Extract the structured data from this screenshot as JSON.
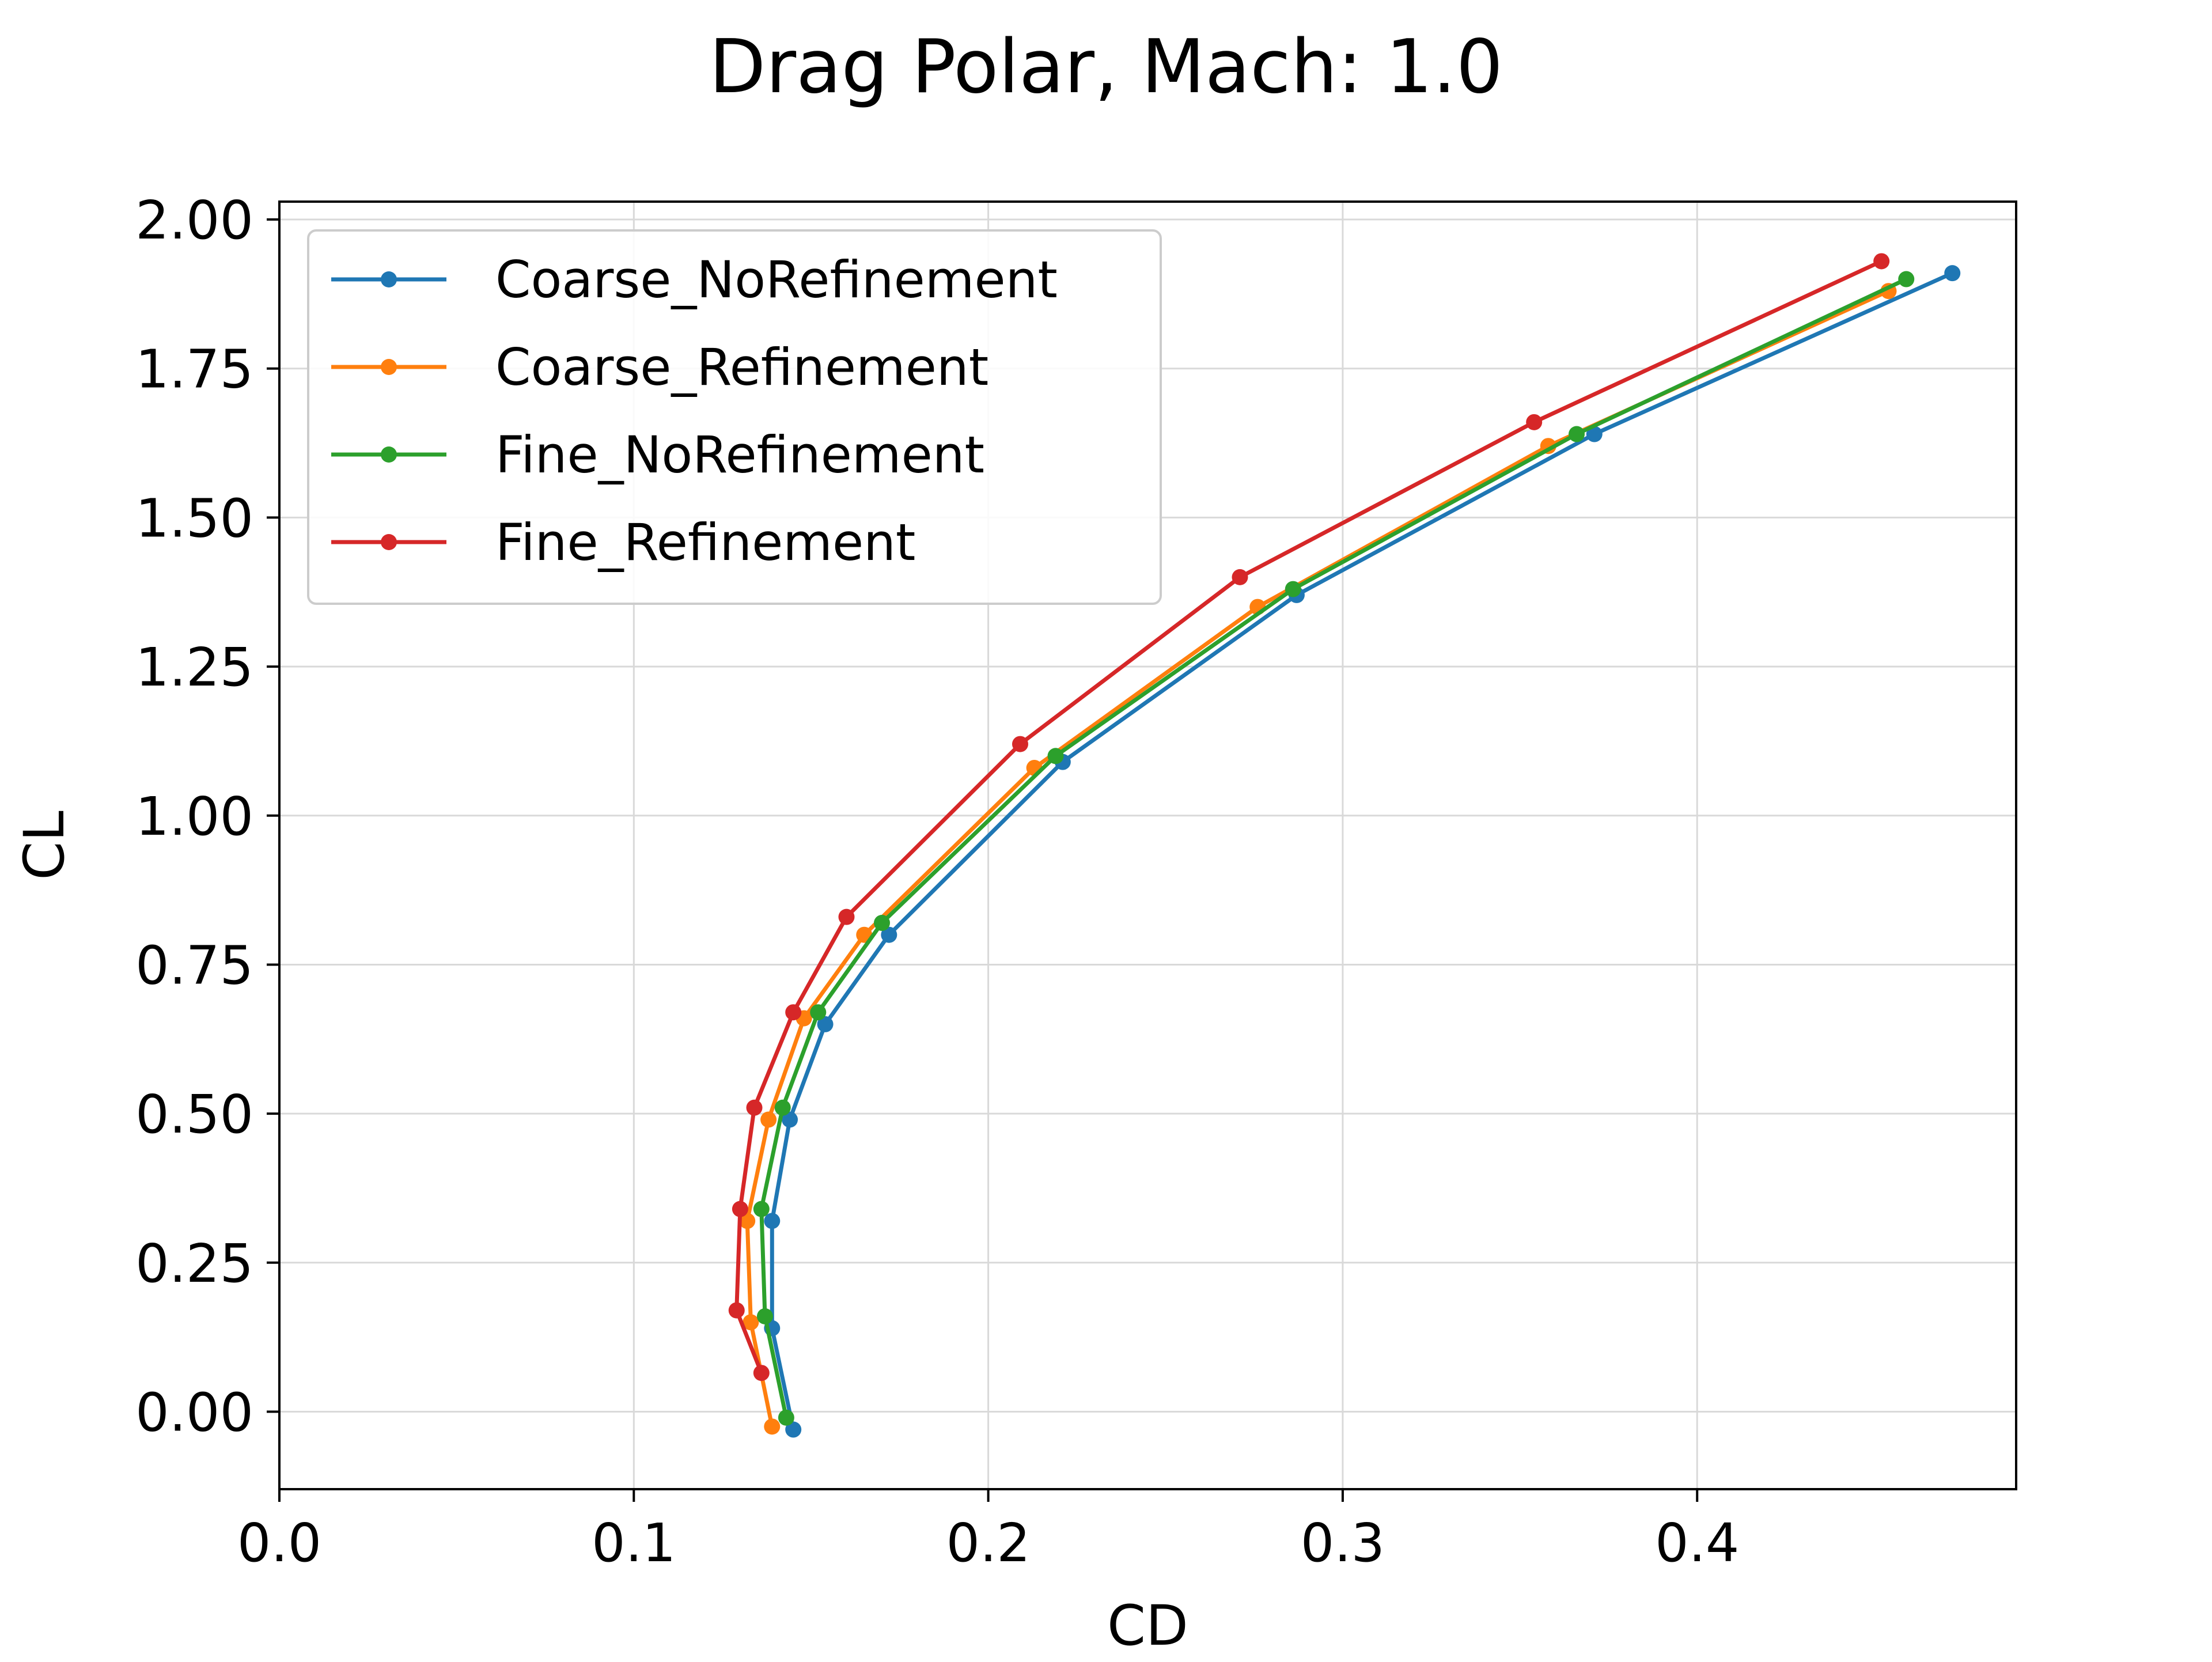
{
  "chart_data": {
    "type": "line",
    "title": "Drag Polar, Mach: 1.0",
    "xlabel": "CD",
    "ylabel": "CL",
    "xlim": [
      0.0,
      0.49
    ],
    "ylim": [
      -0.13,
      2.03
    ],
    "xticks": [
      0.0,
      0.1,
      0.2,
      0.3,
      0.4
    ],
    "xtick_labels": [
      "0.0",
      "0.1",
      "0.2",
      "0.3",
      "0.4"
    ],
    "yticks": [
      0.0,
      0.25,
      0.5,
      0.75,
      1.0,
      1.25,
      1.5,
      1.75,
      2.0
    ],
    "ytick_labels": [
      "0.00",
      "0.25",
      "0.50",
      "0.75",
      "1.00",
      "1.25",
      "1.50",
      "1.75",
      "2.00"
    ],
    "grid": true,
    "legend_position": "top-left",
    "series": [
      {
        "name": "Coarse_NoRefinement",
        "color": "#1f77b4",
        "x": [
          0.145,
          0.139,
          0.139,
          0.144,
          0.154,
          0.172,
          0.221,
          0.287,
          0.371,
          0.472
        ],
        "y": [
          -0.03,
          0.14,
          0.32,
          0.49,
          0.65,
          0.8,
          1.09,
          1.37,
          1.64,
          1.91
        ]
      },
      {
        "name": "Coarse_Refinement",
        "color": "#ff7f0e",
        "x": [
          0.139,
          0.133,
          0.132,
          0.138,
          0.148,
          0.165,
          0.213,
          0.276,
          0.358,
          0.454
        ],
        "y": [
          -0.025,
          0.15,
          0.32,
          0.49,
          0.66,
          0.8,
          1.08,
          1.35,
          1.62,
          1.88
        ]
      },
      {
        "name": "Fine_NoRefinement",
        "color": "#2ca02c",
        "x": [
          0.143,
          0.137,
          0.136,
          0.142,
          0.152,
          0.17,
          0.219,
          0.286,
          0.366,
          0.459
        ],
        "y": [
          -0.01,
          0.16,
          0.34,
          0.51,
          0.67,
          0.82,
          1.1,
          1.38,
          1.64,
          1.9
        ]
      },
      {
        "name": "Fine_Refinement",
        "color": "#d62728",
        "x": [
          0.136,
          0.129,
          0.13,
          0.134,
          0.145,
          0.16,
          0.209,
          0.271,
          0.354,
          0.452
        ],
        "y": [
          0.065,
          0.17,
          0.34,
          0.51,
          0.67,
          0.83,
          1.12,
          1.4,
          1.66,
          1.93
        ]
      }
    ]
  }
}
